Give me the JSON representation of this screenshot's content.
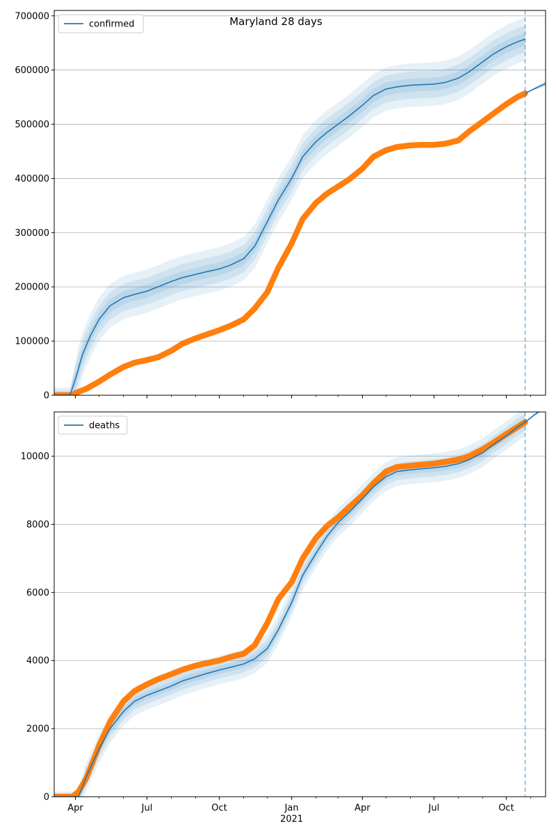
{
  "figure": {
    "title": "Maryland 28 days",
    "colors": {
      "model": "#1f77b4",
      "observed": "#ff7f0e",
      "band": "#1f77b4",
      "grid": "#b0b0b0",
      "vline": "#1f77b4"
    }
  },
  "chart_data": [
    {
      "type": "line",
      "name": "confirmed-panel",
      "legend": {
        "label": "confirmed",
        "placement": "top-left"
      },
      "grid": "horizontal",
      "x_axis": {
        "range": [
          "2020-03-05",
          "2021-11-20"
        ],
        "tick_labels": [
          {
            "date": "2020-04-01",
            "label": "Apr"
          },
          {
            "date": "2020-07-01",
            "label": "Jul"
          },
          {
            "date": "2020-10-01",
            "label": "Oct"
          },
          {
            "date": "2021-01-01",
            "label": "Jan",
            "sublabel": "2021"
          },
          {
            "date": "2021-04-01",
            "label": "Apr"
          },
          {
            "date": "2021-07-01",
            "label": "Jul"
          },
          {
            "date": "2021-10-01",
            "label": "Oct"
          }
        ]
      },
      "y_axis": {
        "range": [
          0,
          710000
        ],
        "ticks": [
          {
            "value": 0,
            "label": "0"
          },
          {
            "value": 100000,
            "label": "100000"
          },
          {
            "value": 200000,
            "label": "200000"
          },
          {
            "value": 300000,
            "label": "300000"
          },
          {
            "value": 400000,
            "label": "400000"
          },
          {
            "value": 500000,
            "label": "500000"
          },
          {
            "value": 600000,
            "label": "600000"
          },
          {
            "value": 700000,
            "label": "700000"
          }
        ]
      },
      "forecast_date": "2021-10-25",
      "model": {
        "x": [
          "2020-03-05",
          "2020-03-25",
          "2020-04-01",
          "2020-04-10",
          "2020-04-20",
          "2020-05-01",
          "2020-05-15",
          "2020-06-01",
          "2020-06-15",
          "2020-07-01",
          "2020-07-15",
          "2020-08-01",
          "2020-08-15",
          "2020-09-01",
          "2020-09-15",
          "2020-10-01",
          "2020-10-15",
          "2020-11-01",
          "2020-11-15",
          "2020-12-01",
          "2020-12-15",
          "2021-01-01",
          "2021-01-15",
          "2021-02-01",
          "2021-02-15",
          "2021-03-01",
          "2021-03-15",
          "2021-04-01",
          "2021-04-15",
          "2021-05-01",
          "2021-05-15",
          "2021-06-01",
          "2021-06-15",
          "2021-07-01",
          "2021-07-15",
          "2021-08-01",
          "2021-08-15",
          "2021-09-01",
          "2021-09-15",
          "2021-10-01",
          "2021-10-15",
          "2021-10-25"
        ],
        "y": [
          0,
          0,
          30000,
          75000,
          110000,
          140000,
          165000,
          180000,
          186000,
          192000,
          200000,
          210000,
          217000,
          223000,
          228000,
          233000,
          240000,
          252000,
          275000,
          320000,
          360000,
          400000,
          440000,
          468000,
          485000,
          500000,
          515000,
          535000,
          553000,
          565000,
          569000,
          572000,
          573000,
          574000,
          577000,
          585000,
          597000,
          615000,
          630000,
          643000,
          652000,
          657000
        ],
        "band_widths": [
          12000,
          25000,
          40000
        ]
      },
      "observed": {
        "x": [
          "2020-03-05",
          "2020-03-28",
          "2020-04-01",
          "2020-04-15",
          "2020-05-01",
          "2020-05-15",
          "2020-06-01",
          "2020-06-15",
          "2020-07-01",
          "2020-07-15",
          "2020-08-01",
          "2020-08-15",
          "2020-09-01",
          "2020-09-15",
          "2020-10-01",
          "2020-10-15",
          "2020-11-01",
          "2020-11-15",
          "2020-12-01",
          "2020-12-15",
          "2021-01-01",
          "2021-01-15",
          "2021-02-01",
          "2021-02-15",
          "2021-03-01",
          "2021-03-15",
          "2021-04-01",
          "2021-04-15",
          "2021-05-01",
          "2021-05-15",
          "2021-06-01",
          "2021-06-15",
          "2021-07-01",
          "2021-07-15",
          "2021-08-01",
          "2021-08-15",
          "2021-09-01",
          "2021-09-15",
          "2021-10-01",
          "2021-10-15",
          "2021-10-25"
        ],
        "y": [
          0,
          0,
          4000,
          12000,
          25000,
          38000,
          52000,
          60000,
          65000,
          70000,
          82000,
          95000,
          105000,
          112000,
          120000,
          128000,
          140000,
          160000,
          190000,
          235000,
          280000,
          325000,
          355000,
          372000,
          385000,
          398000,
          418000,
          440000,
          452000,
          458000,
          461000,
          462000,
          462000,
          464000,
          470000,
          487000,
          505000,
          520000,
          537000,
          550000,
          557000
        ]
      },
      "projection": {
        "x": [
          "2021-10-25",
          "2021-11-05",
          "2021-11-20"
        ],
        "y": [
          557000,
          565000,
          575000
        ]
      }
    },
    {
      "type": "line",
      "name": "deaths-panel",
      "legend": {
        "label": "deaths",
        "placement": "top-left"
      },
      "grid": "horizontal",
      "x_axis": {
        "range": [
          "2020-03-05",
          "2021-11-20"
        ],
        "tick_labels": [
          {
            "date": "2020-04-01",
            "label": "Apr"
          },
          {
            "date": "2020-07-01",
            "label": "Jul"
          },
          {
            "date": "2020-10-01",
            "label": "Oct"
          },
          {
            "date": "2021-01-01",
            "label": "Jan",
            "sublabel": "2021"
          },
          {
            "date": "2021-04-01",
            "label": "Apr"
          },
          {
            "date": "2021-07-01",
            "label": "Jul"
          },
          {
            "date": "2021-10-01",
            "label": "Oct"
          }
        ]
      },
      "y_axis": {
        "range": [
          0,
          11300
        ],
        "ticks": [
          {
            "value": 0,
            "label": "0"
          },
          {
            "value": 2000,
            "label": "2000"
          },
          {
            "value": 4000,
            "label": "4000"
          },
          {
            "value": 6000,
            "label": "6000"
          },
          {
            "value": 8000,
            "label": "8000"
          },
          {
            "value": 10000,
            "label": "10000"
          }
        ]
      },
      "forecast_date": "2021-10-25",
      "model": {
        "x": [
          "2020-03-05",
          "2020-04-05",
          "2020-04-15",
          "2020-05-01",
          "2020-05-15",
          "2020-06-01",
          "2020-06-15",
          "2020-07-01",
          "2020-07-15",
          "2020-08-01",
          "2020-08-15",
          "2020-09-01",
          "2020-09-15",
          "2020-10-01",
          "2020-10-15",
          "2020-11-01",
          "2020-11-15",
          "2020-12-01",
          "2020-12-15",
          "2021-01-01",
          "2021-01-15",
          "2021-02-01",
          "2021-02-15",
          "2021-03-01",
          "2021-03-15",
          "2021-04-01",
          "2021-04-15",
          "2021-05-01",
          "2021-05-15",
          "2021-06-01",
          "2021-06-15",
          "2021-07-01",
          "2021-07-15",
          "2021-08-01",
          "2021-08-15",
          "2021-09-01",
          "2021-09-15",
          "2021-10-01",
          "2021-10-15",
          "2021-10-25"
        ],
        "y": [
          0,
          0,
          600,
          1400,
          2000,
          2500,
          2800,
          2980,
          3100,
          3250,
          3400,
          3520,
          3620,
          3720,
          3800,
          3900,
          4050,
          4350,
          4900,
          5700,
          6500,
          7150,
          7650,
          8050,
          8350,
          8750,
          9100,
          9400,
          9550,
          9600,
          9630,
          9660,
          9700,
          9780,
          9900,
          10100,
          10350,
          10600,
          10850,
          11000
        ],
        "band_widths": [
          120,
          250,
          420
        ]
      },
      "observed": {
        "x": [
          "2020-03-05",
          "2020-03-28",
          "2020-04-05",
          "2020-04-15",
          "2020-05-01",
          "2020-05-15",
          "2020-06-01",
          "2020-06-15",
          "2020-07-01",
          "2020-07-15",
          "2020-08-01",
          "2020-08-15",
          "2020-09-01",
          "2020-09-15",
          "2020-10-01",
          "2020-10-15",
          "2020-11-01",
          "2020-11-15",
          "2020-12-01",
          "2020-12-15",
          "2021-01-01",
          "2021-01-15",
          "2021-02-01",
          "2021-02-15",
          "2021-03-01",
          "2021-03-15",
          "2021-04-01",
          "2021-04-15",
          "2021-05-01",
          "2021-05-15",
          "2021-06-01",
          "2021-06-15",
          "2021-07-01",
          "2021-07-15",
          "2021-08-01",
          "2021-08-15",
          "2021-09-01",
          "2021-09-15",
          "2021-10-01",
          "2021-10-15",
          "2021-10-25"
        ],
        "y": [
          0,
          0,
          150,
          550,
          1500,
          2200,
          2800,
          3100,
          3300,
          3450,
          3600,
          3730,
          3850,
          3920,
          4000,
          4100,
          4200,
          4450,
          5100,
          5800,
          6300,
          7000,
          7600,
          7950,
          8200,
          8500,
          8850,
          9200,
          9550,
          9680,
          9720,
          9750,
          9780,
          9830,
          9900,
          10000,
          10200,
          10400,
          10650,
          10850,
          11000
        ]
      },
      "projection": {
        "x": [
          "2021-10-25",
          "2021-11-05",
          "2021-11-20"
        ],
        "y": [
          11000,
          11200,
          11450
        ]
      }
    }
  ]
}
